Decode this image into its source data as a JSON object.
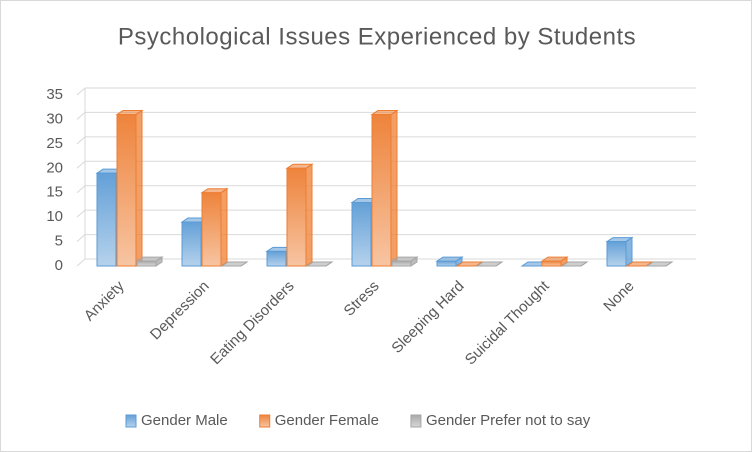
{
  "chart_data": {
    "type": "bar3d",
    "title": "Psychological Issues Experienced by Students",
    "categories": [
      "Anxiety",
      "Depression",
      "Eating Disorders",
      "Stress",
      "Sleeping Hard",
      "Suicidal Thought",
      "None"
    ],
    "series": [
      {
        "name": "Gender Male",
        "color": "#5b9bd5",
        "values": [
          19,
          9,
          3,
          13,
          1,
          0,
          5
        ]
      },
      {
        "name": "Gender Female",
        "color": "#ed7d31",
        "values": [
          31,
          15,
          20,
          31,
          0,
          1,
          0
        ]
      },
      {
        "name": "Gender Prefer not to say",
        "color": "#a5a5a5",
        "values": [
          1,
          0,
          0,
          1,
          0,
          0,
          0
        ]
      }
    ],
    "ylim": [
      0,
      35
    ],
    "yticks": [
      0,
      5,
      10,
      15,
      20,
      25,
      30,
      35
    ],
    "grid": true,
    "legend": "bottom"
  }
}
